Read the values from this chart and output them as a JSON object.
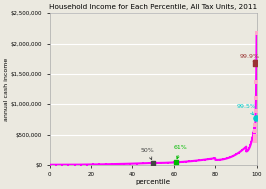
{
  "title": "Household Income for Each Percentile, All Tax Units, 2011",
  "xlabel": "percentile",
  "ylabel": "annual cash income",
  "xlim": [
    0,
    100
  ],
  "ylim": [
    0,
    2500000
  ],
  "yticks": [
    0,
    500000,
    1000000,
    1500000,
    2000000,
    2500000
  ],
  "ytick_labels": [
    "$0",
    "$500,000",
    "$1,000,000",
    "$1,500,000",
    "$2,000,000",
    "$2,500,000"
  ],
  "xticks": [
    0,
    20,
    40,
    60,
    80,
    100
  ],
  "line_color": "#ff00ff",
  "marker_50_x": 50,
  "marker_61_x": 61,
  "marker_995_x": 99.5,
  "marker_999_x": 99.9,
  "label_50": "50%",
  "label_61": "61%",
  "label_995": "99.5%",
  "label_999": "99.9%",
  "color_50": "#444444",
  "color_61": "#00bb00",
  "color_995": "#00cccc",
  "color_999": "#993333",
  "background": "#ebe9e0",
  "grid_color": "#ffffff"
}
